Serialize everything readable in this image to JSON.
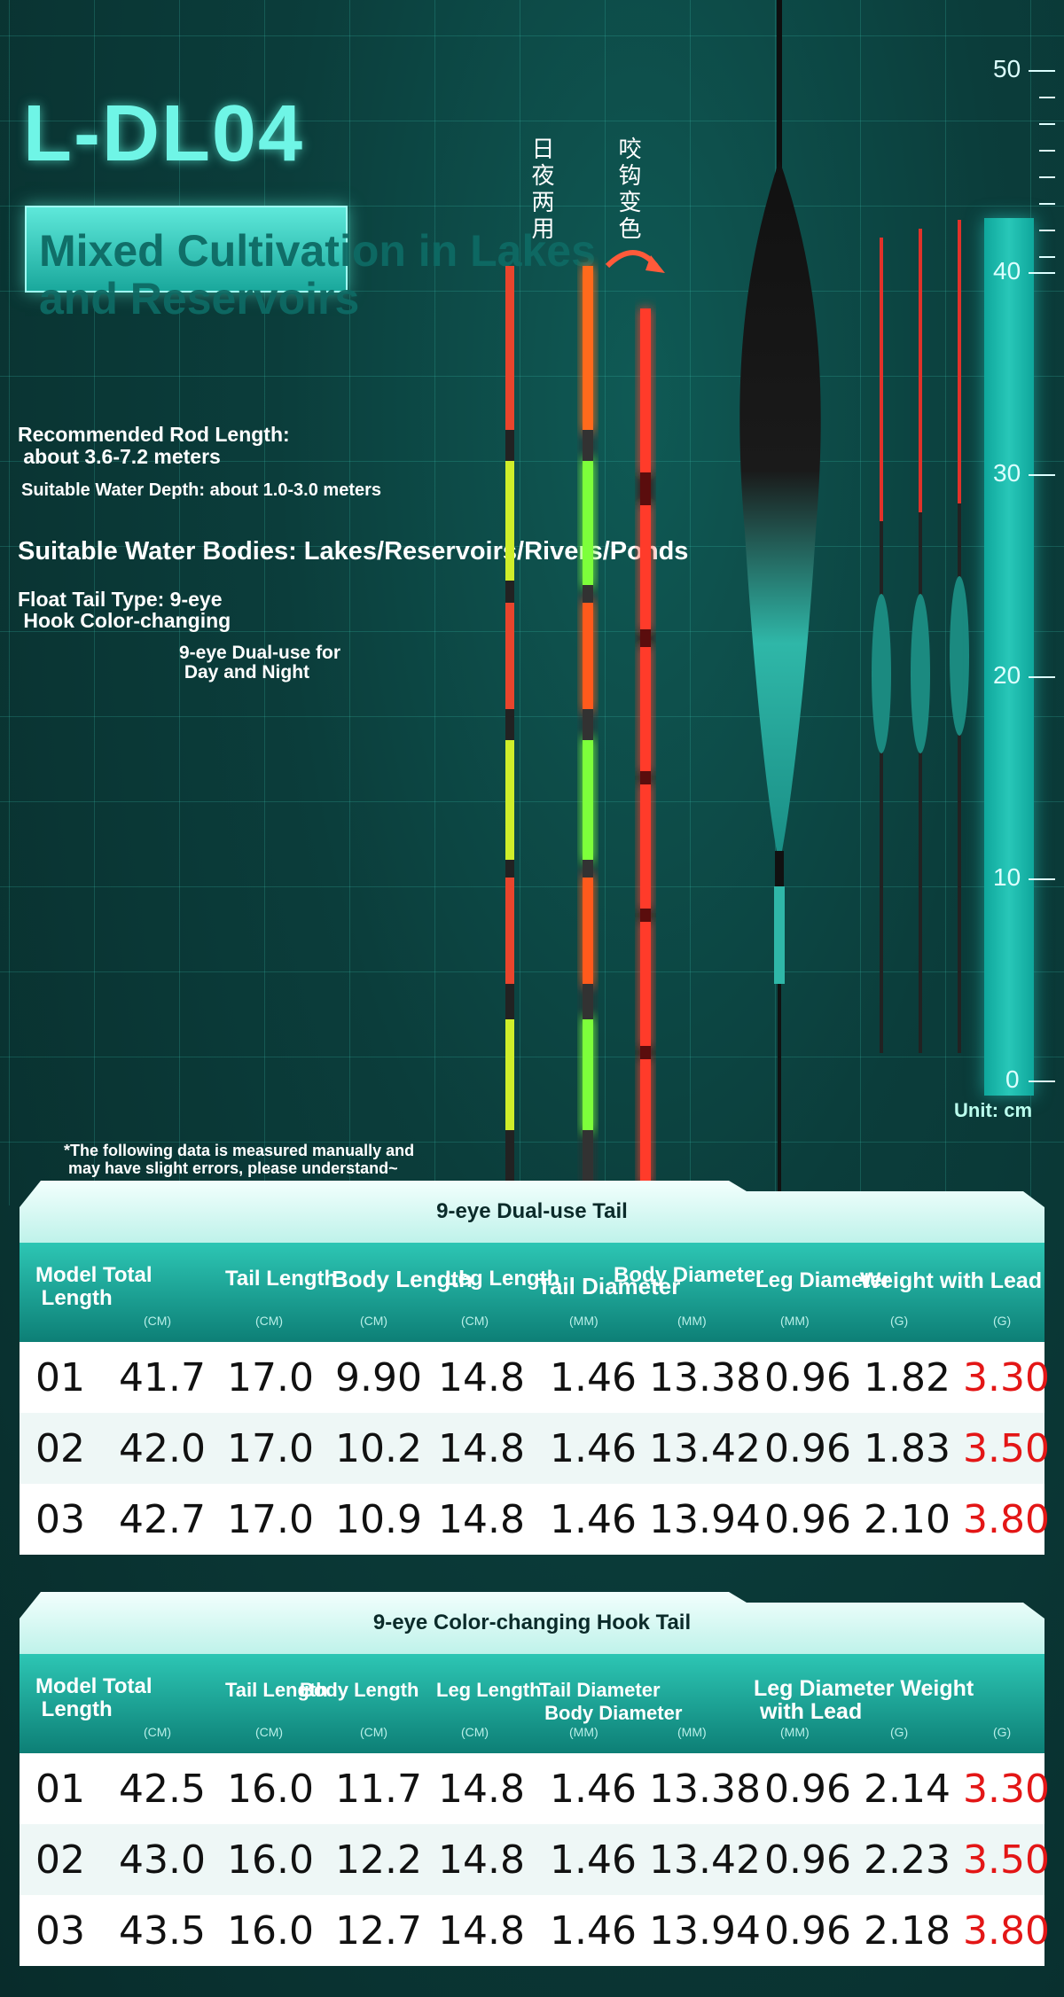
{
  "header": {
    "title": "L-DL04",
    "subtitle": "Mixed Cultivation in Lakes and Reservoirs"
  },
  "specs": {
    "rod_length": "Recommended Rod Length:\n about 3.6-7.2 meters",
    "water_depth": "Suitable Water Depth: about 1.0-3.0 meters",
    "water_bodies": "Suitable Water Bodies: Lakes/Reservoirs/Rivers/Ponds",
    "tail_type": "Float Tail Type: 9-eye\n Hook Color-changing",
    "dual_use": "9-eye Dual-use for\n Day and Night"
  },
  "labels": {
    "day_night": "日夜两用",
    "color_change": "咬钩变色"
  },
  "ruler": {
    "ticks": [
      "50",
      "40",
      "30",
      "20",
      "10",
      "0"
    ],
    "unit": "Unit: cm"
  },
  "note": "*The following data is measured manually and\n may have slight errors, please understand~",
  "colors": {
    "accent": "#2dc6b4",
    "dark": "#0b3d3b",
    "red": "#e31616"
  },
  "table1": {
    "title": "9-eye Dual-use Tail",
    "headers": [
      "Model Total\n Length",
      "Tail Length",
      "Body Length",
      "Leg Length",
      "Tail Diameter",
      "Body Diameter",
      "Leg Diameter",
      "Weight with Lead"
    ],
    "units": [
      "(CM)",
      "(CM)",
      "(CM)",
      "(CM)",
      "(MM)",
      "(MM)",
      "(MM)",
      "(G)",
      "(G)"
    ],
    "rows": [
      [
        "01",
        "41.7",
        "17.0",
        "9.90",
        "14.8",
        "1.46",
        "13.38",
        "0.96",
        "1.82",
        "3.30"
      ],
      [
        "02",
        "42.0",
        "17.0",
        "10.2",
        "14.8",
        "1.46",
        "13.42",
        "0.96",
        "1.83",
        "3.50"
      ],
      [
        "03",
        "42.7",
        "17.0",
        "10.9",
        "14.8",
        "1.46",
        "13.94",
        "0.96",
        "2.10",
        "3.80"
      ]
    ]
  },
  "table2": {
    "title": "9-eye Color-changing Hook Tail",
    "headers": [
      "Model Total\n Length",
      "Tail Length",
      "Body Length",
      "Leg Length",
      "Tail Diameter\n Body Diameter",
      "Leg Diameter Weight\n with Lead"
    ],
    "units": [
      "(CM)",
      "(CM)",
      "(CM)",
      "(CM)",
      "(MM)",
      "(MM)",
      "(MM)",
      "(G)",
      "(G)"
    ],
    "rows": [
      [
        "01",
        "42.5",
        "16.0",
        "11.7",
        "14.8",
        "1.46",
        "13.38",
        "0.96",
        "2.14",
        "3.30"
      ],
      [
        "02",
        "43.0",
        "16.0",
        "12.2",
        "14.8",
        "1.46",
        "13.42",
        "0.96",
        "2.23",
        "3.50"
      ],
      [
        "03",
        "43.5",
        "16.0",
        "12.7",
        "14.8",
        "1.46",
        "13.94",
        "0.96",
        "2.18",
        "3.80"
      ]
    ]
  }
}
